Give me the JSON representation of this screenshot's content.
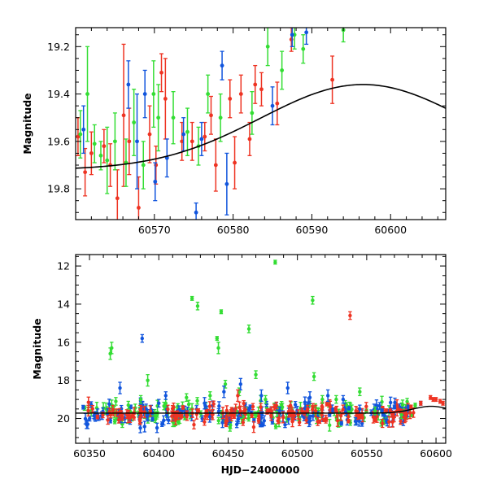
{
  "colors": {
    "red": "#ee3322",
    "green": "#33dd33",
    "blue": "#1155dd",
    "model": "#000000"
  },
  "chart_data": [
    {
      "type": "scatter",
      "ylabel": "Magnitude",
      "xlabel": "",
      "xlim": [
        60560,
        60607
      ],
      "ylim": [
        19.93,
        19.12
      ],
      "y_inverted": true,
      "xticks": [
        60570,
        60580,
        60590,
        60600
      ],
      "yticks": [
        19.2,
        19.4,
        19.6,
        19.8
      ],
      "series": [
        {
          "color": "red",
          "points": [
            {
              "x": 60560.3,
              "y": 19.58,
              "e": 0.08
            },
            {
              "x": 60561.2,
              "y": 19.73,
              "e": 0.1
            },
            {
              "x": 60562.0,
              "y": 19.65,
              "e": 0.09
            },
            {
              "x": 60563.6,
              "y": 19.62,
              "e": 0.07
            },
            {
              "x": 60564.4,
              "y": 19.7,
              "e": 0.09
            },
            {
              "x": 60565.3,
              "y": 19.84,
              "e": 0.12
            },
            {
              "x": 60566.1,
              "y": 19.49,
              "e": 0.3
            },
            {
              "x": 60566.8,
              "y": 19.6,
              "e": 0.14
            },
            {
              "x": 60568.0,
              "y": 19.88,
              "e": 0.13
            },
            {
              "x": 60569.4,
              "y": 19.57,
              "e": 0.12
            },
            {
              "x": 60570.2,
              "y": 19.7,
              "e": 0.08
            },
            {
              "x": 60570.9,
              "y": 19.31,
              "e": 0.08
            },
            {
              "x": 60571.4,
              "y": 19.42,
              "e": 0.17
            },
            {
              "x": 60573.5,
              "y": 19.6,
              "e": 0.08
            },
            {
              "x": 60574.8,
              "y": 19.6,
              "e": 0.08
            },
            {
              "x": 60576.4,
              "y": 19.58,
              "e": 0.06
            },
            {
              "x": 60577.2,
              "y": 19.49,
              "e": 0.08
            },
            {
              "x": 60577.8,
              "y": 19.7,
              "e": 0.11
            },
            {
              "x": 60579.6,
              "y": 19.42,
              "e": 0.08
            },
            {
              "x": 60580.2,
              "y": 19.69,
              "e": 0.11
            },
            {
              "x": 60581.0,
              "y": 19.4,
              "e": 0.08
            },
            {
              "x": 60582.1,
              "y": 19.59,
              "e": 0.07
            },
            {
              "x": 60582.8,
              "y": 19.36,
              "e": 0.08
            },
            {
              "x": 60583.6,
              "y": 19.38,
              "e": 0.07
            },
            {
              "x": 60585.6,
              "y": 19.44,
              "e": 0.09
            },
            {
              "x": 60587.4,
              "y": 19.17,
              "e": 0.05
            },
            {
              "x": 60592.6,
              "y": 19.34,
              "e": 0.1
            }
          ]
        },
        {
          "color": "green",
          "points": [
            {
              "x": 60560.6,
              "y": 19.57,
              "e": 0.1
            },
            {
              "x": 60561.5,
              "y": 19.4,
              "e": 0.2
            },
            {
              "x": 60562.4,
              "y": 19.61,
              "e": 0.08
            },
            {
              "x": 60563.2,
              "y": 19.66,
              "e": 0.06
            },
            {
              "x": 60564.0,
              "y": 19.68,
              "e": 0.14
            },
            {
              "x": 60565.0,
              "y": 19.6,
              "e": 0.12
            },
            {
              "x": 60566.4,
              "y": 19.69,
              "e": 0.1
            },
            {
              "x": 60567.4,
              "y": 19.52,
              "e": 0.14
            },
            {
              "x": 60568.6,
              "y": 19.7,
              "e": 0.1
            },
            {
              "x": 60569.9,
              "y": 19.4,
              "e": 0.14
            },
            {
              "x": 60570.5,
              "y": 19.5,
              "e": 0.14
            },
            {
              "x": 60572.4,
              "y": 19.5,
              "e": 0.11
            },
            {
              "x": 60574.2,
              "y": 19.56,
              "e": 0.1
            },
            {
              "x": 60575.6,
              "y": 19.62,
              "e": 0.08
            },
            {
              "x": 60576.8,
              "y": 19.4,
              "e": 0.08
            },
            {
              "x": 60578.4,
              "y": 19.5,
              "e": 0.1
            },
            {
              "x": 60582.4,
              "y": 19.48,
              "e": 0.09
            },
            {
              "x": 60584.4,
              "y": 19.2,
              "e": 0.08
            },
            {
              "x": 60586.2,
              "y": 19.3,
              "e": 0.08
            },
            {
              "x": 60587.8,
              "y": 19.15,
              "e": 0.06
            },
            {
              "x": 60588.9,
              "y": 19.21,
              "e": 0.06
            },
            {
              "x": 60594.0,
              "y": 19.13,
              "e": 0.05
            }
          ]
        },
        {
          "color": "blue",
          "points": [
            {
              "x": 60561.0,
              "y": 19.55,
              "e": 0.1
            },
            {
              "x": 60566.7,
              "y": 19.36,
              "e": 0.1
            },
            {
              "x": 60567.8,
              "y": 19.6,
              "e": 0.2
            },
            {
              "x": 60568.8,
              "y": 19.4,
              "e": 0.1
            },
            {
              "x": 60570.1,
              "y": 19.77,
              "e": 0.08
            },
            {
              "x": 60571.6,
              "y": 19.67,
              "e": 0.08
            },
            {
              "x": 60573.7,
              "y": 19.57,
              "e": 0.07
            },
            {
              "x": 60575.3,
              "y": 19.9,
              "e": 0.04
            },
            {
              "x": 60576.0,
              "y": 19.59,
              "e": 0.07
            },
            {
              "x": 60578.6,
              "y": 19.28,
              "e": 0.06
            },
            {
              "x": 60579.2,
              "y": 19.78,
              "e": 0.13
            },
            {
              "x": 60585.0,
              "y": 19.45,
              "e": 0.08
            },
            {
              "x": 60587.5,
              "y": 19.15,
              "e": 0.05
            },
            {
              "x": 60589.3,
              "y": 19.14,
              "e": 0.05
            }
          ]
        }
      ]
    },
    {
      "type": "scatter",
      "ylabel": "Magnitude",
      "xlabel": "HJD−2400000",
      "xlim": [
        60340,
        60607
      ],
      "ylim": [
        21.3,
        11.4
      ],
      "y_inverted": true,
      "xticks": [
        60350,
        60400,
        60450,
        60500,
        60550,
        60600
      ],
      "yticks": [
        12,
        14,
        16,
        18,
        20
      ],
      "baseline": {
        "x_start": 60345,
        "x_end": 60585,
        "mean": 19.75,
        "scatter": 0.28,
        "err": 0.22,
        "count_per_band": 160
      },
      "series": [
        {
          "color": "green",
          "outliers": [
            {
              "x": 60365,
              "y": 16.6,
              "e": 0.3
            },
            {
              "x": 60366,
              "y": 16.3,
              "e": 0.3
            },
            {
              "x": 60369,
              "y": 19.1,
              "e": 0.2
            },
            {
              "x": 60378,
              "y": 19.3,
              "e": 0.2
            },
            {
              "x": 60387,
              "y": 19.0,
              "e": 0.2
            },
            {
              "x": 60392,
              "y": 18.0,
              "e": 0.3
            },
            {
              "x": 60405,
              "y": 19.2,
              "e": 0.2
            },
            {
              "x": 60420,
              "y": 18.9,
              "e": 0.2
            },
            {
              "x": 60424,
              "y": 13.7,
              "e": 0.1
            },
            {
              "x": 60428,
              "y": 14.1,
              "e": 0.2
            },
            {
              "x": 60437,
              "y": 18.8,
              "e": 0.2
            },
            {
              "x": 60442,
              "y": 15.8,
              "e": 0.1
            },
            {
              "x": 60443,
              "y": 16.3,
              "e": 0.3
            },
            {
              "x": 60445,
              "y": 14.4,
              "e": 0.1
            },
            {
              "x": 60448,
              "y": 18.2,
              "e": 0.2
            },
            {
              "x": 60458,
              "y": 18.6,
              "e": 0.2
            },
            {
              "x": 60465,
              "y": 15.3,
              "e": 0.2
            },
            {
              "x": 60470,
              "y": 17.7,
              "e": 0.2
            },
            {
              "x": 60477,
              "y": 19.0,
              "e": 0.2
            },
            {
              "x": 60484,
              "y": 11.8,
              "e": 0.1
            },
            {
              "x": 60511,
              "y": 13.8,
              "e": 0.2
            },
            {
              "x": 60512,
              "y": 17.8,
              "e": 0.2
            },
            {
              "x": 60518,
              "y": 19.0,
              "e": 0.2
            },
            {
              "x": 60528,
              "y": 19.0,
              "e": 0.2
            },
            {
              "x": 60545,
              "y": 18.6,
              "e": 0.2
            },
            {
              "x": 60556,
              "y": 19.6,
              "e": 0.2
            },
            {
              "x": 60575,
              "y": 19.8,
              "e": 0.2
            },
            {
              "x": 60585,
              "y": 19.3,
              "e": 0.1
            }
          ]
        },
        {
          "color": "blue",
          "outliers": [
            {
              "x": 60372,
              "y": 18.4,
              "e": 0.3
            },
            {
              "x": 60388,
              "y": 15.8,
              "e": 0.2
            },
            {
              "x": 60400,
              "y": 19.2,
              "e": 0.2
            },
            {
              "x": 60405,
              "y": 18.8,
              "e": 0.2
            },
            {
              "x": 60433,
              "y": 19.2,
              "e": 0.3
            },
            {
              "x": 60447,
              "y": 18.6,
              "e": 0.3
            },
            {
              "x": 60459,
              "y": 18.2,
              "e": 0.3
            },
            {
              "x": 60474,
              "y": 18.8,
              "e": 0.3
            },
            {
              "x": 60493,
              "y": 18.4,
              "e": 0.3
            },
            {
              "x": 60509,
              "y": 18.9,
              "e": 0.3
            },
            {
              "x": 60522,
              "y": 18.8,
              "e": 0.3
            },
            {
              "x": 60533,
              "y": 19.0,
              "e": 0.2
            },
            {
              "x": 60545,
              "y": 19.5,
              "e": 0.2
            },
            {
              "x": 60561,
              "y": 19.6,
              "e": 0.1
            },
            {
              "x": 60570,
              "y": 19.4,
              "e": 0.1
            },
            {
              "x": 60580,
              "y": 19.4,
              "e": 0.1
            },
            {
              "x": 60589,
              "y": 19.2,
              "e": 0.1
            }
          ]
        },
        {
          "color": "red",
          "outliers": [
            {
              "x": 60457,
              "y": 18.8,
              "e": 0.3
            },
            {
              "x": 60538,
              "y": 14.6,
              "e": 0.2
            },
            {
              "x": 60567,
              "y": 19.6,
              "e": 0.1
            },
            {
              "x": 60574,
              "y": 19.6,
              "e": 0.1
            },
            {
              "x": 60582,
              "y": 19.4,
              "e": 0.1
            },
            {
              "x": 60589,
              "y": 19.2,
              "e": 0.1
            },
            {
              "x": 60596,
              "y": 18.9,
              "e": 0.1
            },
            {
              "x": 60598,
              "y": 19.0,
              "e": 0.1
            },
            {
              "x": 60600,
              "y": 19.0,
              "e": 0.1
            },
            {
              "x": 60603,
              "y": 19.1,
              "e": 0.1
            },
            {
              "x": 60605,
              "y": 19.2,
              "e": 0.1
            }
          ]
        }
      ]
    }
  ]
}
